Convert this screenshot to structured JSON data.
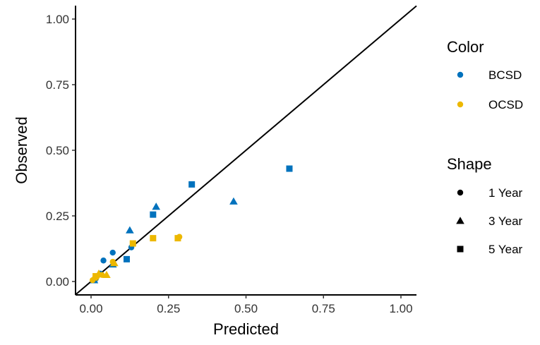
{
  "chart_data": {
    "type": "scatter",
    "xlabel": "Predicted",
    "ylabel": "Observed",
    "xlim": [
      0,
      1.05
    ],
    "ylim": [
      0,
      1.05
    ],
    "x_ticks": [
      "0.00",
      "0.25",
      "0.50",
      "0.75",
      "1.00"
    ],
    "y_ticks": [
      "0.00",
      "0.25",
      "0.50",
      "0.75",
      "1.00"
    ],
    "reference_line": "identity",
    "grid": false,
    "legend": {
      "placement": "right",
      "color": {
        "title": "Color",
        "items": [
          {
            "label": "BCSD",
            "color": "#0072BD"
          },
          {
            "label": "OCSD",
            "color": "#EDB800"
          }
        ]
      },
      "shape": {
        "title": "Shape",
        "items": [
          {
            "label": "1 Year",
            "shape": "circle"
          },
          {
            "label": "3 Year",
            "shape": "triangle"
          },
          {
            "label": "5 Year",
            "shape": "square"
          }
        ]
      }
    },
    "series": [
      {
        "name": "BCSD",
        "shape": "circle",
        "color": "#0072BD",
        "points": [
          [
            0.015,
            0.01
          ],
          [
            0.03,
            0.03
          ],
          [
            0.04,
            0.08
          ],
          [
            0.07,
            0.11
          ],
          [
            0.13,
            0.13
          ]
        ]
      },
      {
        "name": "BCSD",
        "shape": "triangle",
        "color": "#0072BD",
        "points": [
          [
            0.01,
            0.005
          ],
          [
            0.07,
            0.065
          ],
          [
            0.125,
            0.195
          ],
          [
            0.21,
            0.285
          ],
          [
            0.46,
            0.305
          ]
        ]
      },
      {
        "name": "BCSD",
        "shape": "square",
        "color": "#0072BD",
        "points": [
          [
            0.115,
            0.085
          ],
          [
            0.2,
            0.255
          ],
          [
            0.325,
            0.37
          ],
          [
            0.64,
            0.43
          ]
        ]
      },
      {
        "name": "OCSD",
        "shape": "circle",
        "color": "#EDB800",
        "points": [
          [
            0.005,
            0.005
          ],
          [
            0.02,
            0.02
          ],
          [
            0.035,
            0.025
          ],
          [
            0.07,
            0.075
          ],
          [
            0.285,
            0.17
          ]
        ]
      },
      {
        "name": "OCSD",
        "shape": "triangle",
        "color": "#EDB800",
        "points": [
          [
            0.01,
            0.015
          ],
          [
            0.025,
            0.03
          ],
          [
            0.05,
            0.025
          ],
          [
            0.075,
            0.07
          ]
        ]
      },
      {
        "name": "OCSD",
        "shape": "square",
        "color": "#EDB800",
        "points": [
          [
            0.015,
            0.02
          ],
          [
            0.135,
            0.145
          ],
          [
            0.2,
            0.165
          ],
          [
            0.28,
            0.165
          ]
        ]
      }
    ]
  }
}
